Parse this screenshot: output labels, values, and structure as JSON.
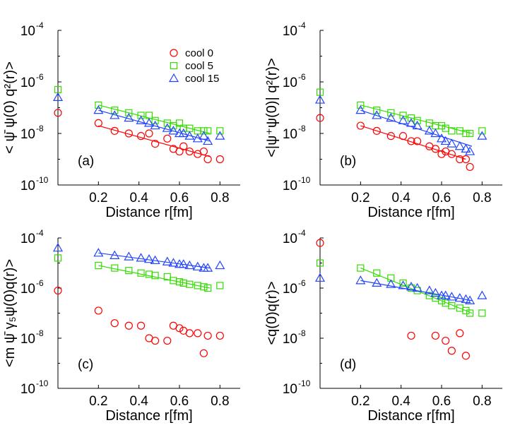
{
  "colors": {
    "cool0": "#ff0000",
    "cool5": "#33dd00",
    "cool15": "#2244ff"
  },
  "chart_data": [
    {
      "type": "scatter",
      "panel": "(a)",
      "xlabel": "Distance r[fm]",
      "ylabel": "< ψ̄ ψ(0) q²(r)>",
      "xlim": [
        0.0,
        0.9
      ],
      "ylim_log10": [
        -10,
        -4
      ],
      "xticks": [
        "0.2",
        "0.4",
        "0.6",
        "0.8"
      ],
      "yticks": [
        {
          "base": "10",
          "exp": "-4"
        },
        {
          "base": "10",
          "exp": "-6"
        },
        {
          "base": "10",
          "exp": "-8"
        },
        {
          "base": "10",
          "exp": "-10"
        }
      ],
      "legend": [
        "cool  0",
        "cool  5",
        "cool 15"
      ],
      "series": [
        {
          "name": "cool 0",
          "marker": "circle",
          "color": "cool0",
          "points": [
            [
              0,
              -7.2
            ],
            [
              0.2,
              -7.6
            ],
            [
              0.28,
              -7.9
            ],
            [
              0.35,
              -8.0
            ],
            [
              0.41,
              -8.1
            ],
            [
              0.45,
              -8.0
            ],
            [
              0.48,
              -8.4
            ],
            [
              0.54,
              -8.2
            ],
            [
              0.57,
              -8.6
            ],
            [
              0.6,
              -8.7
            ],
            [
              0.62,
              -8.5
            ],
            [
              0.65,
              -8.7
            ],
            [
              0.69,
              -8.8
            ],
            [
              0.72,
              -8.7
            ],
            [
              0.74,
              -9.0
            ],
            [
              0.8,
              -9.0
            ]
          ],
          "fit": [
            [
              0.2,
              -7.7
            ],
            [
              0.75,
              -8.9
            ]
          ]
        },
        {
          "name": "cool 5",
          "marker": "square",
          "color": "cool5",
          "points": [
            [
              0,
              -6.3
            ],
            [
              0.2,
              -6.9
            ],
            [
              0.28,
              -7.1
            ],
            [
              0.35,
              -7.2
            ],
            [
              0.41,
              -7.3
            ],
            [
              0.45,
              -7.3
            ],
            [
              0.48,
              -7.5
            ],
            [
              0.54,
              -7.6
            ],
            [
              0.57,
              -7.7
            ],
            [
              0.6,
              -7.6
            ],
            [
              0.62,
              -7.8
            ],
            [
              0.65,
              -7.8
            ],
            [
              0.69,
              -7.9
            ],
            [
              0.72,
              -7.9
            ],
            [
              0.74,
              -7.9
            ],
            [
              0.8,
              -7.9
            ]
          ],
          "fit": [
            [
              0.2,
              -6.9
            ],
            [
              0.75,
              -8.0
            ]
          ]
        },
        {
          "name": "cool 15",
          "marker": "triangle",
          "color": "cool15",
          "points": [
            [
              0,
              -6.6
            ],
            [
              0.2,
              -7.1
            ],
            [
              0.28,
              -7.3
            ],
            [
              0.35,
              -7.4
            ],
            [
              0.41,
              -7.5
            ],
            [
              0.45,
              -7.6
            ],
            [
              0.48,
              -7.7
            ],
            [
              0.54,
              -7.8
            ],
            [
              0.57,
              -7.9
            ],
            [
              0.6,
              -8.0
            ],
            [
              0.62,
              -8.0
            ],
            [
              0.65,
              -8.1
            ],
            [
              0.69,
              -8.2
            ],
            [
              0.72,
              -8.1
            ],
            [
              0.74,
              -8.3
            ],
            [
              0.8,
              -8.1
            ]
          ],
          "fit": [
            [
              0.2,
              -7.1
            ],
            [
              0.75,
              -8.3
            ]
          ]
        }
      ]
    },
    {
      "type": "scatter",
      "panel": "(b)",
      "xlabel": "Distance r[fm]",
      "ylabel": "<|ψ⁺ψ(0)| q²(r)>",
      "xlim": [
        0.0,
        0.9
      ],
      "ylim_log10": [
        -10,
        -4
      ],
      "xticks": [
        "0.2",
        "0.4",
        "0.6",
        "0.8"
      ],
      "yticks": [
        {
          "base": "10",
          "exp": "-4"
        },
        {
          "base": "10",
          "exp": "-6"
        },
        {
          "base": "10",
          "exp": "-8"
        },
        {
          "base": "10",
          "exp": "-10"
        }
      ],
      "series": [
        {
          "name": "cool 0",
          "marker": "circle",
          "color": "cool0",
          "points": [
            [
              0,
              -7.4
            ],
            [
              0.2,
              -7.7
            ],
            [
              0.28,
              -7.9
            ],
            [
              0.35,
              -8.1
            ],
            [
              0.41,
              -8.1
            ],
            [
              0.45,
              -8.3
            ],
            [
              0.48,
              -8.3
            ],
            [
              0.54,
              -8.5
            ],
            [
              0.57,
              -8.6
            ],
            [
              0.6,
              -8.8
            ],
            [
              0.62,
              -8.7
            ],
            [
              0.65,
              -8.8
            ],
            [
              0.69,
              -9.0
            ],
            [
              0.72,
              -9.0
            ],
            [
              0.74,
              -9.3
            ]
          ],
          "fit": [
            [
              0.2,
              -7.7
            ],
            [
              0.72,
              -9.0
            ]
          ]
        },
        {
          "name": "cool 5",
          "marker": "square",
          "color": "cool5",
          "points": [
            [
              0,
              -6.4
            ],
            [
              0.2,
              -6.9
            ],
            [
              0.28,
              -7.1
            ],
            [
              0.35,
              -7.2
            ],
            [
              0.41,
              -7.3
            ],
            [
              0.45,
              -7.4
            ],
            [
              0.48,
              -7.5
            ],
            [
              0.54,
              -7.6
            ],
            [
              0.57,
              -7.7
            ],
            [
              0.6,
              -7.7
            ],
            [
              0.62,
              -7.8
            ],
            [
              0.65,
              -7.9
            ],
            [
              0.69,
              -7.9
            ],
            [
              0.72,
              -8.0
            ],
            [
              0.74,
              -8.0
            ],
            [
              0.8,
              -7.9
            ]
          ],
          "fit": [
            [
              0.2,
              -6.9
            ],
            [
              0.75,
              -8.0
            ]
          ]
        },
        {
          "name": "cool 15",
          "marker": "triangle",
          "color": "cool15",
          "points": [
            [
              0,
              -6.7
            ],
            [
              0.2,
              -7.1
            ],
            [
              0.28,
              -7.3
            ],
            [
              0.35,
              -7.4
            ],
            [
              0.41,
              -7.5
            ],
            [
              0.45,
              -7.6
            ],
            [
              0.48,
              -7.7
            ],
            [
              0.54,
              -7.9
            ],
            [
              0.57,
              -8.0
            ],
            [
              0.6,
              -8.2
            ],
            [
              0.62,
              -8.3
            ],
            [
              0.65,
              -8.4
            ],
            [
              0.69,
              -8.5
            ],
            [
              0.72,
              -8.6
            ],
            [
              0.74,
              -8.7
            ],
            [
              0.8,
              -8.1
            ]
          ],
          "fit": [
            [
              0.2,
              -7.1
            ],
            [
              0.75,
              -8.5
            ]
          ]
        }
      ]
    },
    {
      "type": "scatter",
      "panel": "(c)",
      "xlabel": "Distance r[fm]",
      "ylabel": "<m ψ̄ γ₅ψ(0)q(r)>",
      "xlim": [
        0.0,
        0.9
      ],
      "ylim_log10": [
        -10,
        -4
      ],
      "xticks": [
        "0.2",
        "0.4",
        "0.6",
        "0.8"
      ],
      "yticks": [
        {
          "base": "10",
          "exp": "-4"
        },
        {
          "base": "10",
          "exp": "-6"
        },
        {
          "base": "10",
          "exp": "-8"
        },
        {
          "base": "10",
          "exp": "-10"
        }
      ],
      "series": [
        {
          "name": "cool 0",
          "marker": "circle",
          "color": "cool0",
          "points": [
            [
              0,
              -6.1
            ],
            [
              0.2,
              -6.9
            ],
            [
              0.28,
              -7.4
            ],
            [
              0.35,
              -7.5
            ],
            [
              0.41,
              -7.5
            ],
            [
              0.45,
              -8.0
            ],
            [
              0.48,
              -8.1
            ],
            [
              0.54,
              -8.1
            ],
            [
              0.57,
              -7.5
            ],
            [
              0.6,
              -7.6
            ],
            [
              0.62,
              -7.7
            ],
            [
              0.65,
              -7.8
            ],
            [
              0.69,
              -7.8
            ],
            [
              0.72,
              -8.6
            ],
            [
              0.74,
              -7.9
            ],
            [
              0.8,
              -7.9
            ]
          ]
        },
        {
          "name": "cool 5",
          "marker": "square",
          "color": "cool5",
          "points": [
            [
              0,
              -4.8
            ],
            [
              0.2,
              -5.1
            ],
            [
              0.28,
              -5.2
            ],
            [
              0.35,
              -5.3
            ],
            [
              0.41,
              -5.4
            ],
            [
              0.45,
              -5.45
            ],
            [
              0.48,
              -5.5
            ],
            [
              0.54,
              -5.55
            ],
            [
              0.57,
              -5.7
            ],
            [
              0.6,
              -5.75
            ],
            [
              0.62,
              -5.8
            ],
            [
              0.65,
              -5.85
            ],
            [
              0.69,
              -5.9
            ],
            [
              0.72,
              -5.95
            ],
            [
              0.74,
              -6.0
            ],
            [
              0.8,
              -5.9
            ]
          ],
          "fit": [
            [
              0.2,
              -5.1
            ],
            [
              0.75,
              -6.0
            ]
          ]
        },
        {
          "name": "cool 15",
          "marker": "triangle",
          "color": "cool15",
          "points": [
            [
              0,
              -4.4
            ],
            [
              0.2,
              -4.6
            ],
            [
              0.28,
              -4.7
            ],
            [
              0.35,
              -4.75
            ],
            [
              0.41,
              -4.8
            ],
            [
              0.45,
              -4.85
            ],
            [
              0.48,
              -4.9
            ],
            [
              0.54,
              -4.95
            ],
            [
              0.57,
              -5.0
            ],
            [
              0.6,
              -5.05
            ],
            [
              0.62,
              -5.05
            ],
            [
              0.65,
              -5.1
            ],
            [
              0.69,
              -5.15
            ],
            [
              0.72,
              -5.2
            ],
            [
              0.74,
              -5.2
            ],
            [
              0.8,
              -5.1
            ]
          ],
          "fit": [
            [
              0.2,
              -4.6
            ],
            [
              0.75,
              -5.2
            ]
          ]
        }
      ]
    },
    {
      "type": "scatter",
      "panel": "(d)",
      "xlabel": "Distance r[fm]",
      "ylabel": "<q(0)q(r)>",
      "xlim": [
        0.0,
        0.9
      ],
      "ylim_log10": [
        -10,
        -4
      ],
      "xticks": [
        "0.2",
        "0.4",
        "0.6",
        "0.8"
      ],
      "yticks": [
        {
          "base": "10",
          "exp": "-4"
        },
        {
          "base": "10",
          "exp": "-6"
        },
        {
          "base": "10",
          "exp": "-8"
        },
        {
          "base": "10",
          "exp": "-10"
        }
      ],
      "series": [
        {
          "name": "cool 0",
          "marker": "circle",
          "color": "cool0",
          "points": [
            [
              0,
              -4.2
            ],
            [
              0.45,
              -7.9
            ],
            [
              0.57,
              -7.9
            ],
            [
              0.62,
              -8.1
            ],
            [
              0.65,
              -8.5
            ],
            [
              0.69,
              -7.8
            ],
            [
              0.72,
              -8.7
            ]
          ]
        },
        {
          "name": "cool 5",
          "marker": "square",
          "color": "cool5",
          "points": [
            [
              0,
              -5.0
            ],
            [
              0.2,
              -5.2
            ],
            [
              0.28,
              -5.4
            ],
            [
              0.35,
              -5.6
            ],
            [
              0.41,
              -5.8
            ],
            [
              0.45,
              -6.0
            ],
            [
              0.48,
              -6.1
            ],
            [
              0.54,
              -6.3
            ],
            [
              0.57,
              -6.4
            ],
            [
              0.6,
              -6.5
            ],
            [
              0.62,
              -6.6
            ],
            [
              0.65,
              -6.7
            ],
            [
              0.69,
              -6.8
            ],
            [
              0.72,
              -6.9
            ],
            [
              0.74,
              -7.0
            ],
            [
              0.8,
              -7.0
            ]
          ],
          "fit": [
            [
              0.2,
              -5.2
            ],
            [
              0.75,
              -7.0
            ]
          ]
        },
        {
          "name": "cool 15",
          "marker": "triangle",
          "color": "cool15",
          "points": [
            [
              0,
              -5.6
            ],
            [
              0.2,
              -5.7
            ],
            [
              0.28,
              -5.8
            ],
            [
              0.35,
              -5.85
            ],
            [
              0.41,
              -5.9
            ],
            [
              0.45,
              -5.95
            ],
            [
              0.48,
              -6.0
            ],
            [
              0.54,
              -6.1
            ],
            [
              0.57,
              -6.2
            ],
            [
              0.6,
              -6.3
            ],
            [
              0.62,
              -6.3
            ],
            [
              0.65,
              -6.35
            ],
            [
              0.69,
              -6.4
            ],
            [
              0.72,
              -6.45
            ],
            [
              0.74,
              -6.5
            ],
            [
              0.8,
              -6.3
            ]
          ],
          "fit": [
            [
              0.2,
              -5.7
            ],
            [
              0.75,
              -6.5
            ]
          ]
        }
      ]
    }
  ]
}
